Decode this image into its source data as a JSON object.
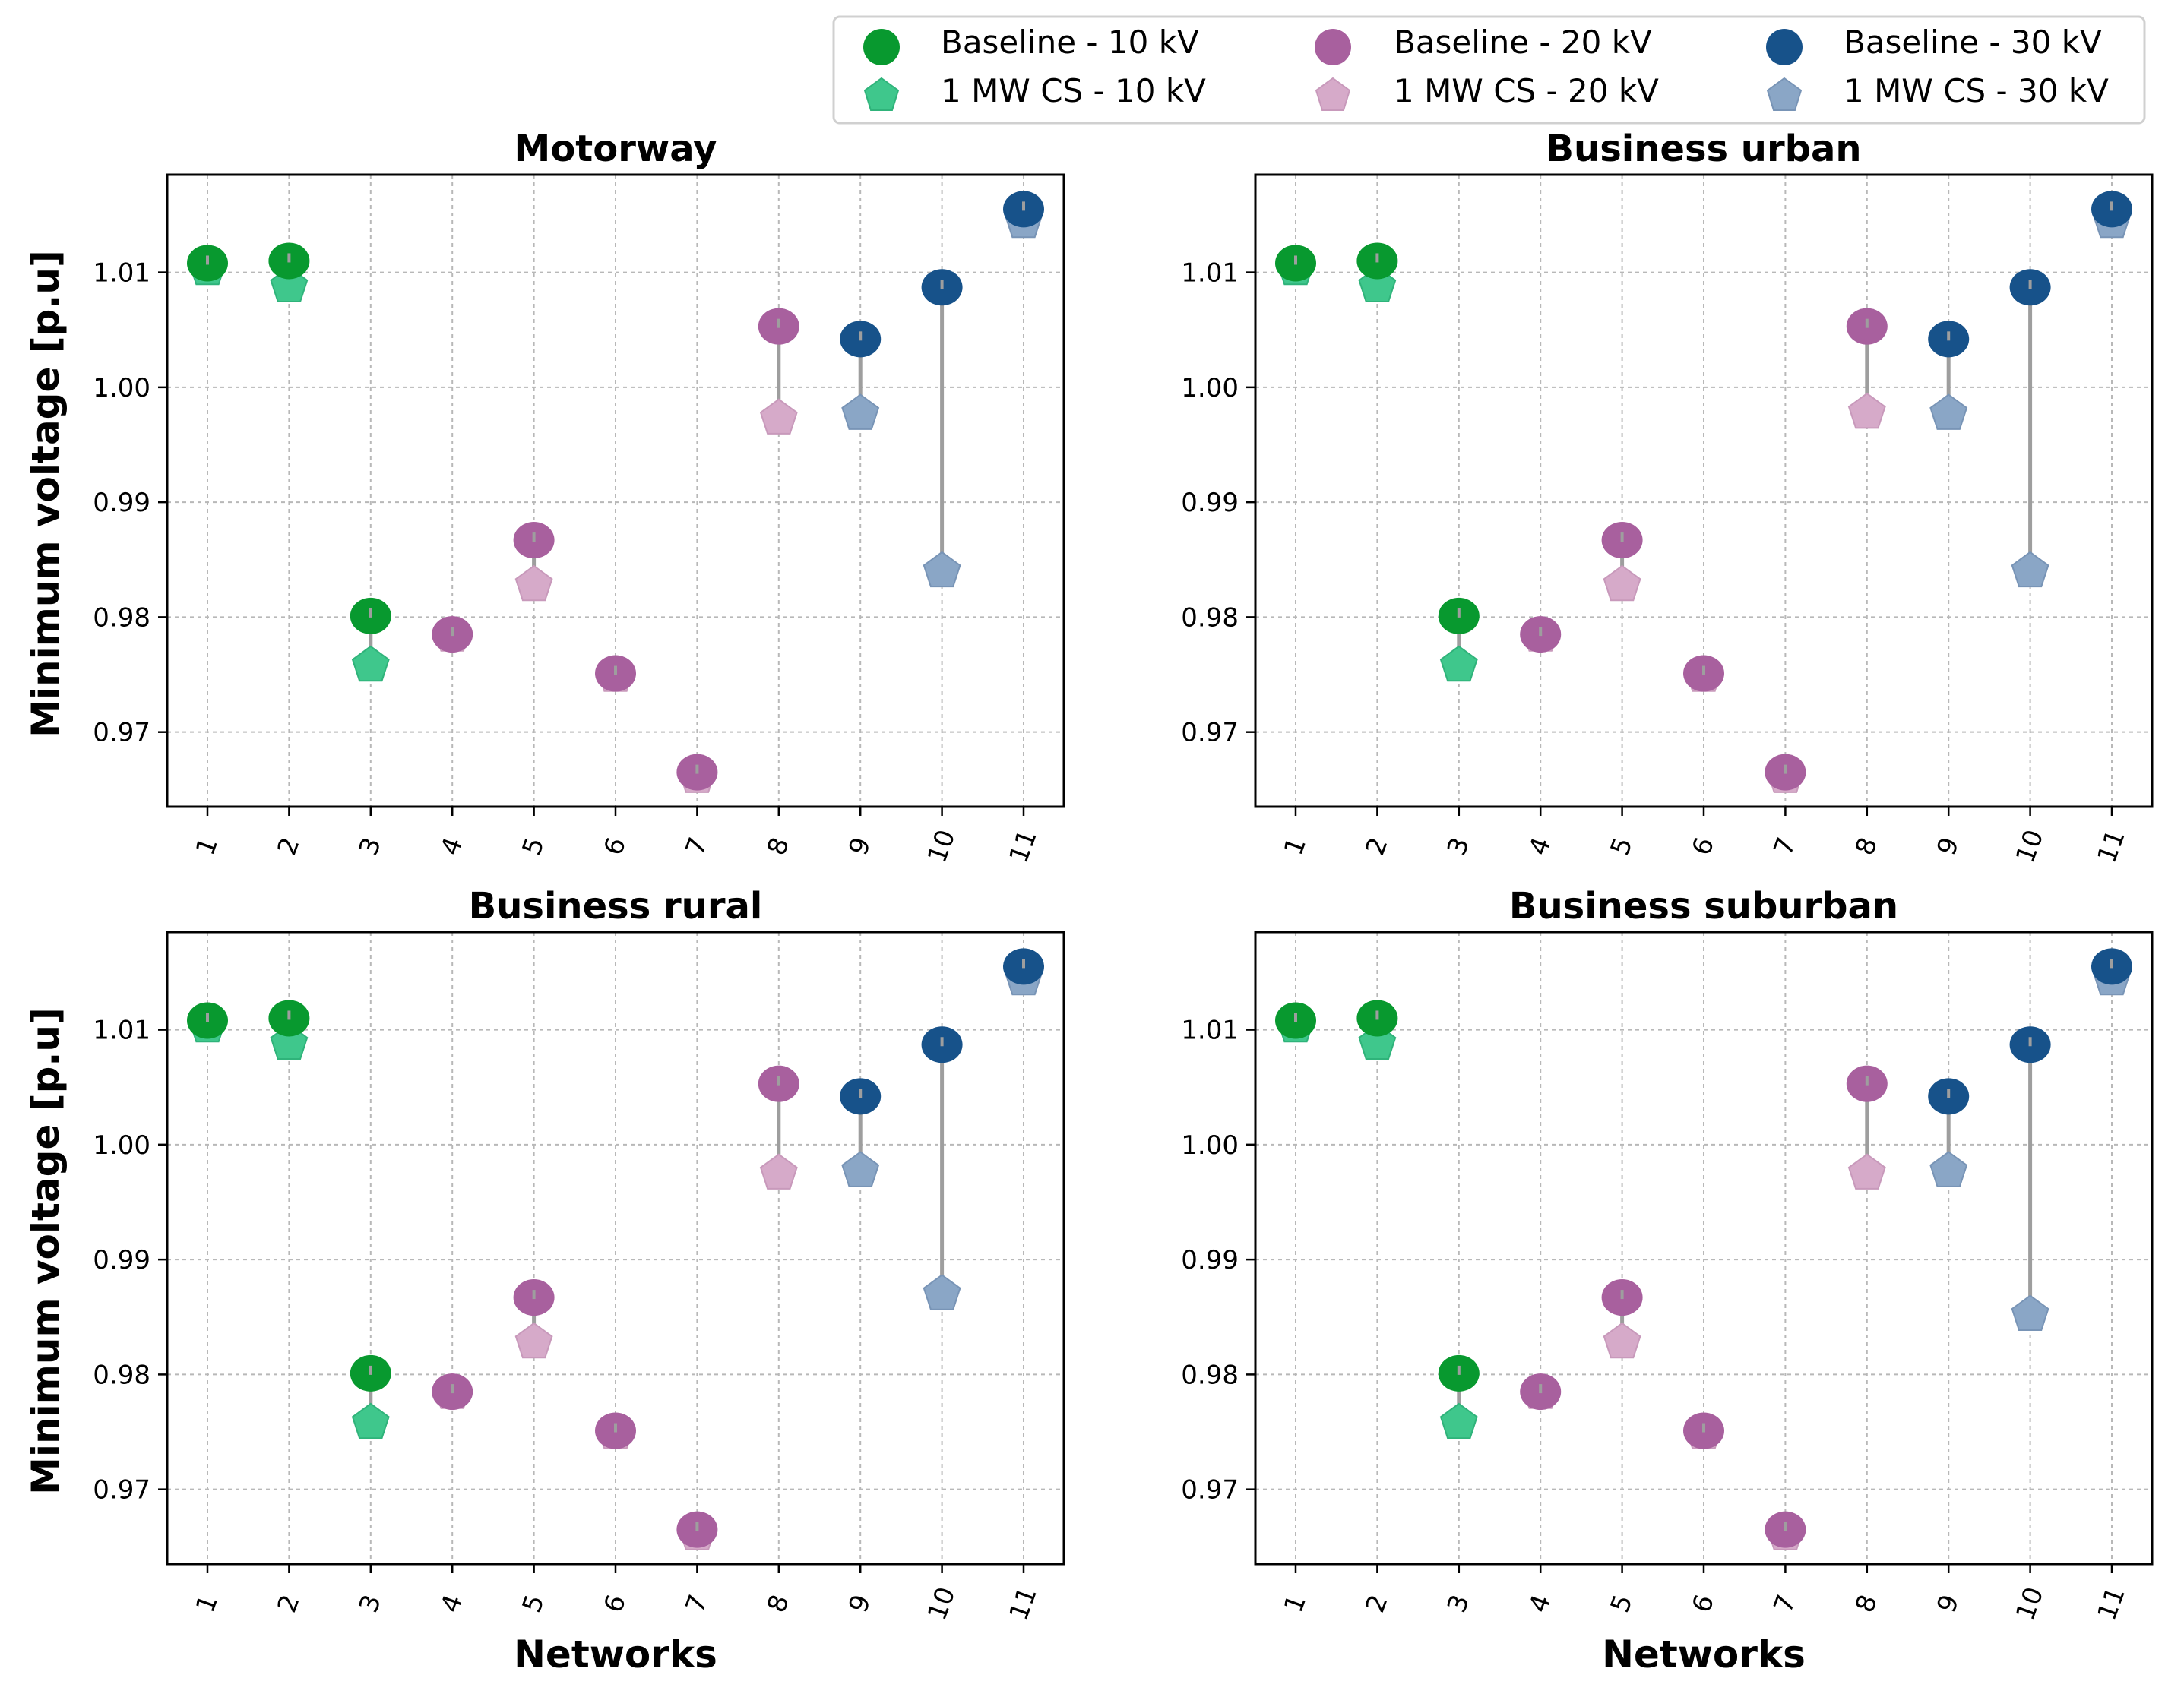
{
  "chart_data": {
    "type": "scatter",
    "categories": [
      "1",
      "2",
      "3",
      "4",
      "5",
      "6",
      "7",
      "8",
      "9",
      "10",
      "11"
    ],
    "legend": {
      "placement": "top-right",
      "entries": [
        {
          "label": "Baseline - 10 kV",
          "marker": "circle",
          "color": "#08992f"
        },
        {
          "label": "1 MW CS - 10 kV",
          "marker": "pentagon",
          "color": "#3fc78c"
        },
        {
          "label": "Baseline - 20 kV",
          "marker": "circle",
          "color": "#a8609e"
        },
        {
          "label": "1 MW CS - 20 kV",
          "marker": "pentagon",
          "color": "#d6aac9"
        },
        {
          "label": "Baseline - 30 kV",
          "marker": "circle",
          "color": "#17528a"
        },
        {
          "label": "1 MW CS - 30 kV",
          "marker": "pentagon",
          "color": "#8aa6c6"
        }
      ]
    },
    "network_voltage_level": [
      "10 kV",
      "10 kV",
      "10 kV",
      "20 kV",
      "20 kV",
      "20 kV",
      "20 kV",
      "20 kV",
      "30 kV",
      "30 kV",
      "30 kV"
    ],
    "connector_color": "#9e9e9e",
    "ylim": [
      0.9635,
      1.0185
    ],
    "yticks": [
      "0.97",
      "0.98",
      "0.99",
      "1.00",
      "1.01"
    ],
    "ytick_values": [
      0.97,
      0.98,
      0.99,
      1.0,
      1.01
    ],
    "grid": true,
    "panels": [
      {
        "title": "Motorway",
        "xlabel": "",
        "ylabel": "Minimum voltage [p.u]",
        "baseline": [
          1.0108,
          1.011,
          0.9801,
          0.9785,
          0.9867,
          0.9751,
          0.9665,
          1.0053,
          1.0042,
          1.0087,
          1.0155
        ],
        "cs_1mw": [
          1.0103,
          1.0088,
          0.9758,
          0.9784,
          0.9828,
          0.9749,
          0.9661,
          0.9973,
          0.9977,
          0.984,
          1.0144
        ]
      },
      {
        "title": "Business urban",
        "xlabel": "",
        "ylabel": "",
        "baseline": [
          1.0108,
          1.011,
          0.9801,
          0.9785,
          0.9867,
          0.9751,
          0.9665,
          1.0053,
          1.0042,
          1.0087,
          1.0155
        ],
        "cs_1mw": [
          1.0103,
          1.0088,
          0.9758,
          0.9784,
          0.9828,
          0.9749,
          0.9661,
          0.9978,
          0.9977,
          0.984,
          1.0144
        ]
      },
      {
        "title": "Business rural",
        "xlabel": "Networks",
        "ylabel": "Minimum voltage [p.u]",
        "baseline": [
          1.0108,
          1.011,
          0.9801,
          0.9785,
          0.9867,
          0.9751,
          0.9665,
          1.0053,
          1.0042,
          1.0087,
          1.0155
        ],
        "cs_1mw": [
          1.0103,
          1.0088,
          0.9758,
          0.9784,
          0.9828,
          0.9749,
          0.9661,
          0.9975,
          0.9977,
          0.987,
          1.0144
        ]
      },
      {
        "title": "Business suburban",
        "xlabel": "Networks",
        "ylabel": "",
        "baseline": [
          1.0108,
          1.011,
          0.9801,
          0.9785,
          0.9867,
          0.9751,
          0.9665,
          1.0053,
          1.0042,
          1.0087,
          1.0155
        ],
        "cs_1mw": [
          1.0103,
          1.0088,
          0.9758,
          0.9784,
          0.9828,
          0.9749,
          0.9661,
          0.9975,
          0.9977,
          0.9852,
          1.0144
        ]
      }
    ]
  }
}
